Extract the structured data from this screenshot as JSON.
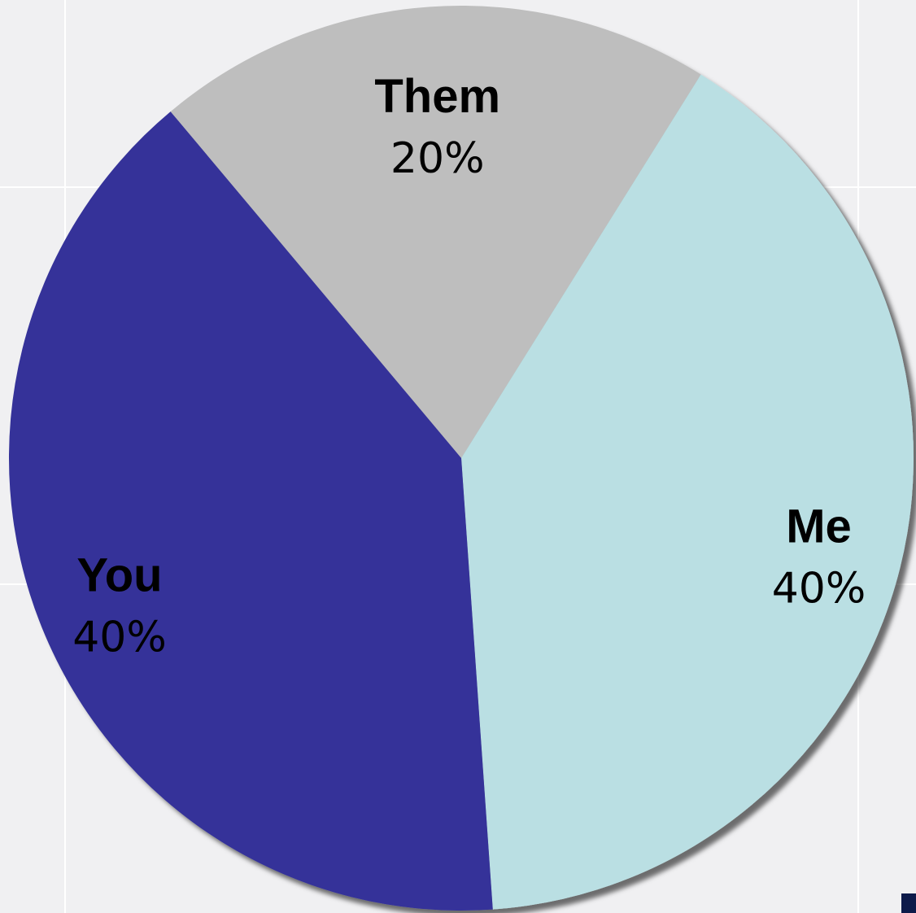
{
  "chart_data": {
    "type": "pie",
    "title": "",
    "slices": [
      {
        "label": "Them",
        "value": 20,
        "value_label": "20%",
        "color": "#bebebe"
      },
      {
        "label": "Me",
        "value": 40,
        "value_label": "40%",
        "color": "#badfe3"
      },
      {
        "label": "You",
        "value": 40,
        "value_label": "40%",
        "color": "#343399"
      }
    ],
    "start_angle_deg": -40,
    "direction": "clockwise",
    "legend": "none",
    "labels_inside": true,
    "grid": true
  }
}
